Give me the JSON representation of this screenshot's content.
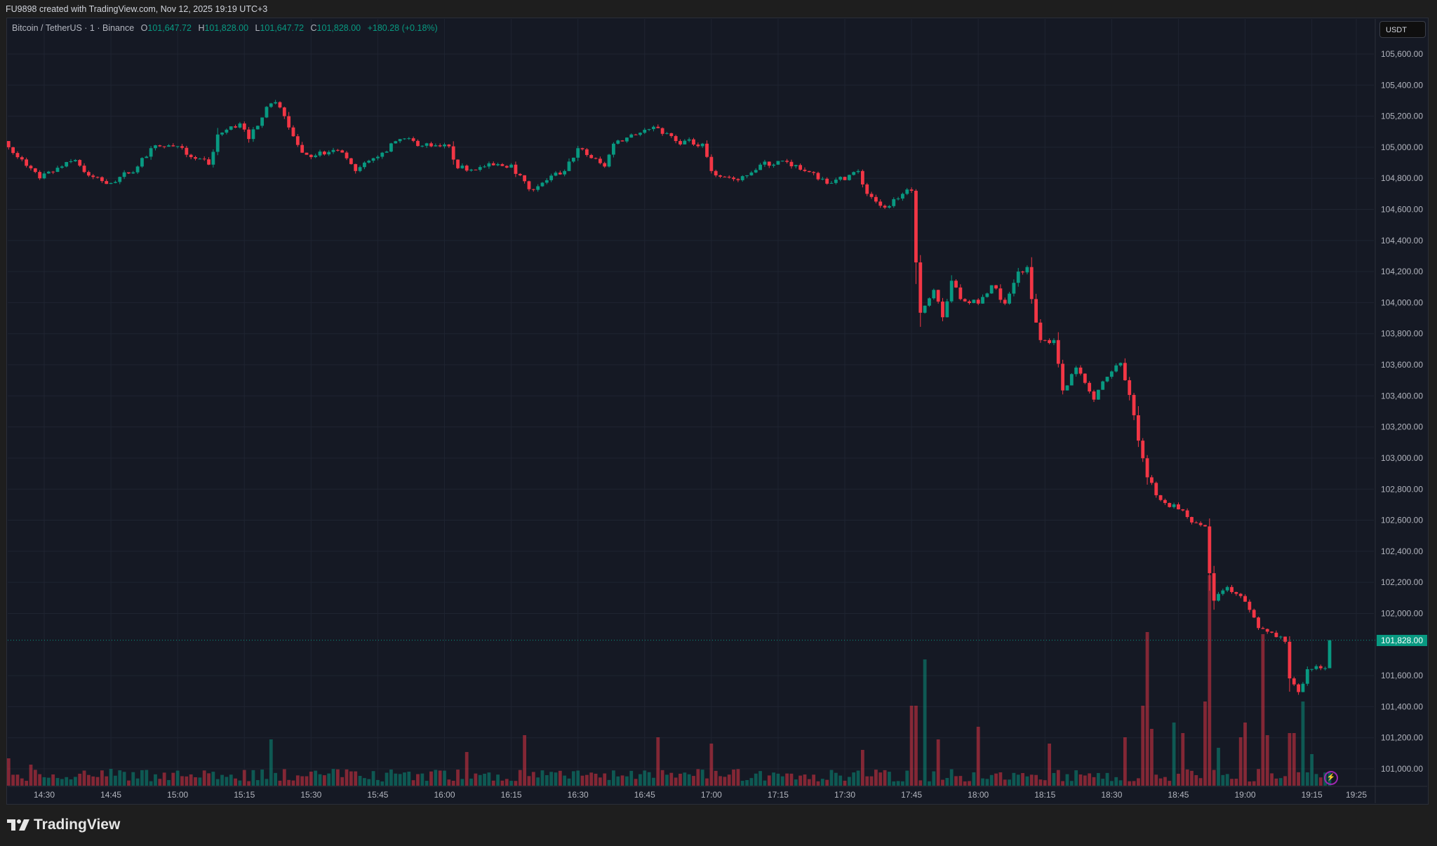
{
  "header": {
    "attribution": "FU9898 created with TradingView.com, Nov 12, 2025 19:19 UTC+3"
  },
  "legend": {
    "symbol": "Bitcoin / TetherUS · 1 · Binance",
    "o_label": "O",
    "o_value": "101,647.72",
    "h_label": "H",
    "h_value": "101,828.00",
    "l_label": "L",
    "l_value": "101,647.72",
    "c_label": "C",
    "c_value": "101,828.00",
    "change": "+180.28 (+0.18%)"
  },
  "price_axis": {
    "currency": "USDT",
    "current_price_label": "101,828.00",
    "ticks": [
      "105,600.00",
      "105,400.00",
      "105,200.00",
      "105,000.00",
      "104,800.00",
      "104,600.00",
      "104,400.00",
      "104,200.00",
      "104,000.00",
      "103,800.00",
      "103,600.00",
      "103,400.00",
      "103,200.00",
      "103,000.00",
      "102,800.00",
      "102,600.00",
      "102,400.00",
      "102,200.00",
      "102,000.00",
      "101,600.00",
      "101,400.00",
      "101,200.00",
      "101,000.00"
    ]
  },
  "time_axis": {
    "ticks": [
      "14:30",
      "14:45",
      "15:00",
      "15:15",
      "15:30",
      "15:45",
      "16:00",
      "16:15",
      "16:30",
      "16:45",
      "17:00",
      "17:15",
      "17:30",
      "17:45",
      "18:00",
      "18:15",
      "18:30",
      "18:45",
      "19:00",
      "19:15",
      "19:25"
    ]
  },
  "branding": {
    "logo_text": "TradingView"
  },
  "colors": {
    "up": "#089981",
    "down": "#f23645",
    "background": "#151924",
    "grid": "#1f2431"
  },
  "chart_data": {
    "type": "candlestick",
    "interval_minutes": 1,
    "start_time": "14:22",
    "end_time": "19:19",
    "ylim": [
      100900,
      105700
    ],
    "grid": true,
    "close_path": [
      [
        "14:22",
        105000
      ],
      [
        "14:29",
        104800
      ],
      [
        "14:37",
        104918
      ],
      [
        "14:40",
        104818
      ],
      [
        "14:45",
        104770
      ],
      [
        "14:51",
        104876
      ],
      [
        "14:54",
        104994
      ],
      [
        "14:59",
        105006
      ],
      [
        "15:07",
        104888
      ],
      [
        "15:09",
        105082
      ],
      [
        "15:14",
        105153
      ],
      [
        "15:16",
        105053
      ],
      [
        "15:20",
        105260
      ],
      [
        "15:22",
        105290
      ],
      [
        "15:24",
        105200
      ],
      [
        "15:28",
        104965
      ],
      [
        "15:31",
        104947
      ],
      [
        "15:36",
        104980
      ],
      [
        "15:40",
        104847
      ],
      [
        "15:46",
        104965
      ],
      [
        "15:50",
        105053
      ],
      [
        "15:57",
        105006
      ],
      [
        "16:01",
        105006
      ],
      [
        "16:03",
        104865
      ],
      [
        "16:09",
        104876
      ],
      [
        "16:15",
        104888
      ],
      [
        "16:19",
        104730
      ],
      [
        "16:23",
        104788
      ],
      [
        "16:27",
        104847
      ],
      [
        "16:30",
        104994
      ],
      [
        "16:36",
        104876
      ],
      [
        "16:38",
        105023
      ],
      [
        "16:42",
        105082
      ],
      [
        "16:48",
        105123
      ],
      [
        "16:52",
        105040
      ],
      [
        "16:58",
        105023
      ],
      [
        "17:00",
        104847
      ],
      [
        "17:06",
        104788
      ],
      [
        "17:11",
        104888
      ],
      [
        "17:17",
        104906
      ],
      [
        "17:21",
        104847
      ],
      [
        "17:27",
        104770
      ],
      [
        "17:33",
        104847
      ],
      [
        "17:35",
        104700
      ],
      [
        "17:39",
        104612
      ],
      [
        "17:43",
        104700
      ],
      [
        "17:45",
        104720
      ],
      [
        "17:46",
        104259
      ],
      [
        "17:47",
        103935
      ],
      [
        "17:50",
        104082
      ],
      [
        "17:52",
        103906
      ],
      [
        "17:54",
        104141
      ],
      [
        "17:56",
        104023
      ],
      [
        "18:00",
        103994
      ],
      [
        "18:03",
        104112
      ],
      [
        "18:06",
        103994
      ],
      [
        "18:09",
        104200
      ],
      [
        "18:11",
        104229
      ],
      [
        "18:12",
        104023
      ],
      [
        "18:14",
        103759
      ],
      [
        "18:17",
        103759
      ],
      [
        "18:19",
        103435
      ],
      [
        "18:22",
        103582
      ],
      [
        "18:26",
        103376
      ],
      [
        "18:29",
        103523
      ],
      [
        "18:32",
        103612
      ],
      [
        "18:34",
        103406
      ],
      [
        "18:36",
        103112
      ],
      [
        "18:38",
        102876
      ],
      [
        "18:41",
        102730
      ],
      [
        "18:45",
        102670
      ],
      [
        "18:49",
        102582
      ],
      [
        "18:51",
        102560
      ],
      [
        "18:52",
        102259
      ],
      [
        "18:53",
        102082
      ],
      [
        "18:56",
        102170
      ],
      [
        "18:59",
        102112
      ],
      [
        "19:01",
        102023
      ],
      [
        "19:03",
        101906
      ],
      [
        "19:06",
        101876
      ],
      [
        "19:09",
        101818
      ],
      [
        "19:10",
        101582
      ],
      [
        "19:12",
        101494
      ],
      [
        "19:14",
        101641
      ],
      [
        "19:18",
        101647.72
      ],
      [
        "19:19",
        101828
      ]
    ],
    "last_candle": {
      "time": "19:19",
      "open": 101647.72,
      "high": 101828.0,
      "low": 101647.72,
      "close": 101828.0,
      "change": 180.28,
      "change_pct": 0.18
    },
    "volume_spikes_relative": [
      [
        "14:22",
        0.13
      ],
      [
        "14:27",
        0.1
      ],
      [
        "15:21",
        0.22
      ],
      [
        "16:05",
        0.16
      ],
      [
        "16:18",
        0.24
      ],
      [
        "16:48",
        0.23
      ],
      [
        "17:00",
        0.2
      ],
      [
        "17:34",
        0.17
      ],
      [
        "17:45",
        0.38
      ],
      [
        "17:46",
        0.38
      ],
      [
        "17:48",
        0.6
      ],
      [
        "17:51",
        0.22
      ],
      [
        "18:00",
        0.28
      ],
      [
        "18:16",
        0.2
      ],
      [
        "18:33",
        0.23
      ],
      [
        "18:37",
        0.38
      ],
      [
        "18:38",
        0.73
      ],
      [
        "18:39",
        0.27
      ],
      [
        "18:44",
        0.3
      ],
      [
        "18:46",
        0.25
      ],
      [
        "18:51",
        0.4
      ],
      [
        "18:52",
        1.0
      ],
      [
        "18:54",
        0.18
      ],
      [
        "18:59",
        0.23
      ],
      [
        "19:00",
        0.3
      ],
      [
        "19:04",
        0.72
      ],
      [
        "19:05",
        0.24
      ],
      [
        "19:10",
        0.25
      ],
      [
        "19:11",
        0.25
      ],
      [
        "19:13",
        0.4
      ],
      [
        "19:15",
        0.15
      ]
    ]
  }
}
